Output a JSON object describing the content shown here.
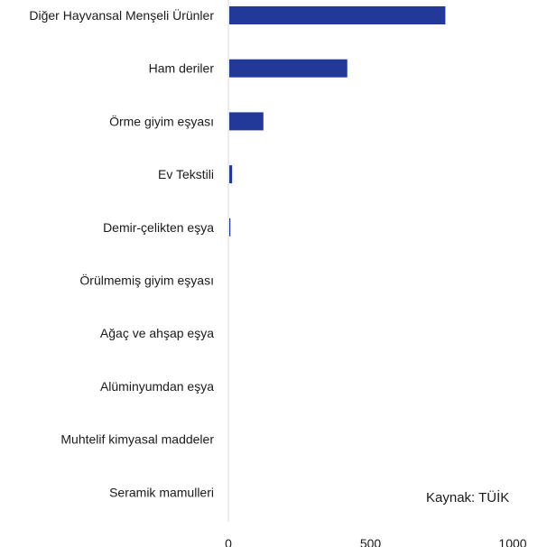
{
  "chart_data": {
    "type": "bar",
    "orientation": "horizontal",
    "categories": [
      "Diğer Hayvansal Menşeli Ürünler",
      "Ham deriler",
      "Örme giyim eşyası",
      "Ev Tekstili",
      "Demir-çelikten eşya",
      "Örülmemiş giyim eşyası",
      "Ağaç ve ahşap eşya",
      "Alüminyumdan eşya",
      "Muhtelif kimyasal maddeler",
      "Seramik mamulleri"
    ],
    "values": [
      760,
      415,
      120,
      10,
      4,
      0,
      0,
      0,
      0,
      0
    ],
    "xlim": [
      0,
      1000
    ],
    "xticks": [
      "0",
      "500",
      "1000"
    ],
    "grid": false,
    "bar_color": "#23399a",
    "axis_color": "#d9d9d9",
    "note": "Kaynak: TÜİK"
  }
}
